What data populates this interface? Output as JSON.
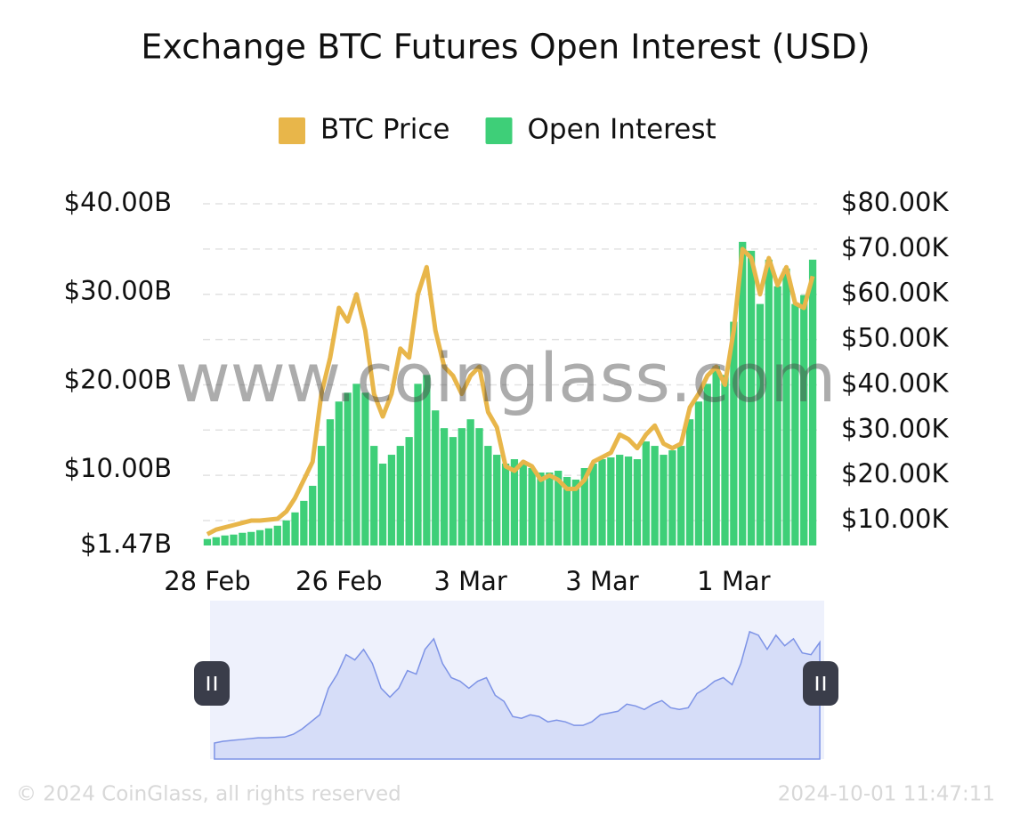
{
  "chart_data": {
    "type": "combo",
    "title": "Exchange BTC Futures Open Interest (USD)",
    "watermark": "www.coinglass.com",
    "footer_left": "© 2024 CoinGlass, all rights reserved",
    "footer_right": "2024-10-01 11:47:11",
    "grid": true,
    "legend": "top",
    "categories": [
      "28 Feb",
      null,
      null,
      null,
      null,
      null,
      null,
      null,
      null,
      null,
      null,
      null,
      null,
      null,
      null,
      "26 Feb",
      null,
      null,
      null,
      null,
      null,
      null,
      null,
      null,
      null,
      null,
      null,
      null,
      null,
      null,
      "3 Mar",
      null,
      null,
      null,
      null,
      null,
      null,
      null,
      null,
      null,
      null,
      null,
      null,
      null,
      null,
      "3 Mar",
      null,
      null,
      null,
      null,
      null,
      null,
      null,
      null,
      null,
      null,
      null,
      null,
      null,
      null,
      "1 Mar",
      null,
      null,
      null,
      null,
      null,
      null,
      null,
      null,
      null
    ],
    "ylim": [
      1470000000,
      40000000000
    ],
    "yticks": [
      {
        "value": 1470000000,
        "label": "$1.47B"
      },
      {
        "value": 10000000000,
        "label": "$10.00B"
      },
      {
        "value": 20000000000,
        "label": "$20.00B"
      },
      {
        "value": 30000000000,
        "label": "$30.00B"
      },
      {
        "value": 40000000000,
        "label": "$40.00B"
      }
    ],
    "y2lim": [
      4500,
      80000
    ],
    "y2ticks": [
      {
        "value": 10000,
        "label": "$10.00K"
      },
      {
        "value": 20000,
        "label": "$20.00K"
      },
      {
        "value": 30000,
        "label": "$30.00K"
      },
      {
        "value": 40000,
        "label": "$40.00K"
      },
      {
        "value": 50000,
        "label": "$50.00K"
      },
      {
        "value": 60000,
        "label": "$60.00K"
      },
      {
        "value": 70000,
        "label": "$70.00K"
      },
      {
        "value": 80000,
        "label": "$80.00K"
      }
    ],
    "series": [
      {
        "name": "BTC Price",
        "type": "line",
        "axis": "y2",
        "color": "#e8b64a",
        "values": [
          7000,
          8000,
          8500,
          9000,
          9500,
          10000,
          10000,
          10200,
          10400,
          12000,
          15000,
          19000,
          23000,
          38000,
          46000,
          57000,
          54000,
          60000,
          52000,
          38000,
          33000,
          38000,
          48000,
          46000,
          60000,
          66000,
          52000,
          44000,
          42000,
          38000,
          42000,
          44000,
          34000,
          30600,
          22000,
          21000,
          23000,
          22000,
          19000,
          20000,
          19000,
          17000,
          17000,
          19000,
          23000,
          24000,
          25000,
          29000,
          28000,
          26000,
          29000,
          31000,
          27000,
          26000,
          27000,
          35000,
          38000,
          42000,
          44000,
          40000,
          52000,
          70000,
          68000,
          60000,
          68000,
          62000,
          66000,
          58000,
          57000,
          64000
        ]
      },
      {
        "name": "Open Interest",
        "type": "bar",
        "axis": "y",
        "color": "#3ecf78",
        "values": [
          2200000000,
          2400000000,
          2600000000,
          2700000000,
          2900000000,
          3000000000,
          3200000000,
          3400000000,
          3700000000,
          4300000000,
          5200000000,
          6500000000,
          8200000000,
          12700000000,
          15700000000,
          17700000000,
          18700000000,
          19700000000,
          18700000000,
          12700000000,
          10700000000,
          11700000000,
          12700000000,
          13700000000,
          19700000000,
          20700000000,
          16700000000,
          14700000000,
          13700000000,
          14700000000,
          15700000000,
          14700000000,
          12700000000,
          11700000000,
          10700000000,
          11200000000,
          10700000000,
          10200000000,
          9700000000,
          9700000000,
          9900000000,
          9200000000,
          8900000000,
          10200000000,
          10700000000,
          11200000000,
          11400000000,
          11700000000,
          11500000000,
          11200000000,
          13200000000,
          12700000000,
          11700000000,
          12200000000,
          12700000000,
          15700000000,
          17700000000,
          19700000000,
          21700000000,
          20700000000,
          26700000000,
          35700000000,
          34700000000,
          28700000000,
          33700000000,
          30700000000,
          32700000000,
          28700000000,
          29700000000,
          33700000000
        ]
      }
    ]
  }
}
